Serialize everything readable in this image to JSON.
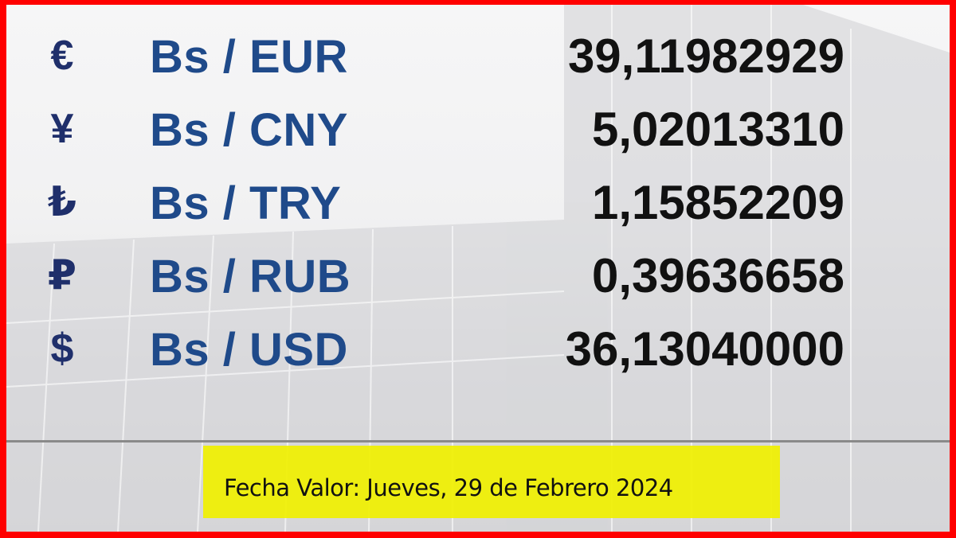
{
  "rates": [
    {
      "symbol": "€",
      "pair": "Bs / EUR",
      "value": "39,11982929"
    },
    {
      "symbol": "¥",
      "pair": "Bs / CNY",
      "value": "5,02013310"
    },
    {
      "symbol": "₺",
      "pair": "Bs / TRY",
      "value": "1,15852209"
    },
    {
      "symbol": "₽",
      "pair": "Bs / RUB",
      "value": "0,39636658"
    },
    {
      "symbol": "$",
      "pair": "Bs / USD",
      "value": "36,13040000"
    }
  ],
  "footer": {
    "date_label": "Fecha Valor: Jueves, 29 de Febrero 2024"
  },
  "colors": {
    "border": "#ff0000",
    "pair_text": "#1f4a8a",
    "symbol": "#1f2f6b",
    "date_highlight": "#f0f000"
  }
}
